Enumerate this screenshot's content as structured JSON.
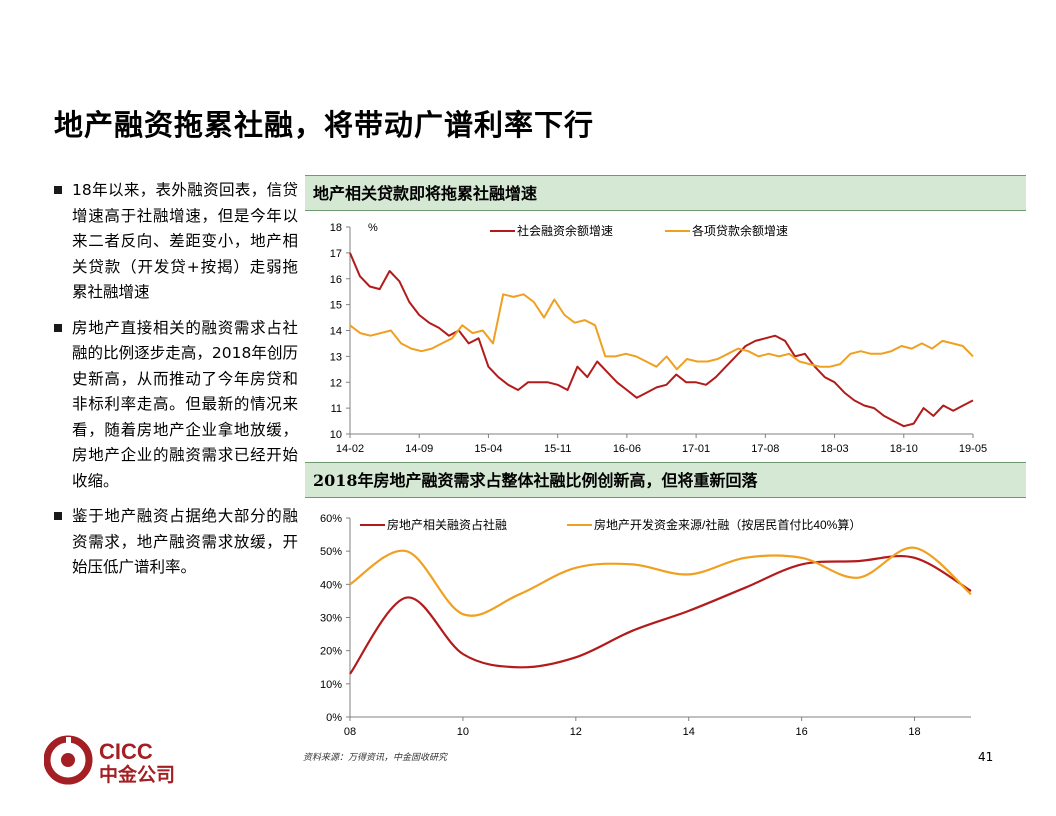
{
  "slide": {
    "title": "地产融资拖累社融，将带动广谱利率下行",
    "page_number": "41",
    "source": "资料来源：万得资讯，中金固收研究"
  },
  "bullets": [
    "18年以来，表外融资回表，信贷增速高于社融增速，但是今年以来二者反向、差距变小，地产相关贷款（开发贷+按揭）走弱拖累社融增速",
    "房地产直接相关的融资需求占社融的比例逐步走高，2018年创历史新高，从而推动了今年房贷和非标利率走高。但最新的情况来看，随着房地产企业拿地放缓，房地产企业的融资需求已经开始收缩。",
    "鉴于地产融资占据绝大部分的融资需求，地产融资需求放缓，开始压低广谱利率。"
  ],
  "logo": {
    "en": "CICC",
    "zh": "中金公司",
    "color": "#a31f24"
  },
  "colors": {
    "red": "#b31b1b",
    "orange": "#f0a020",
    "header_bg": "#d5e8d4"
  },
  "chart_data": [
    {
      "type": "line",
      "title": "地产相关贷款即将拖累社融增速",
      "ylabel": "%",
      "ylim": [
        10,
        18
      ],
      "yticks": [
        "10",
        "11",
        "12",
        "13",
        "14",
        "15",
        "16",
        "17",
        "18"
      ],
      "xticks": [
        "14-02",
        "14-09",
        "15-04",
        "15-11",
        "16-06",
        "17-01",
        "17-08",
        "18-03",
        "18-10",
        "19-05"
      ],
      "legend_position": "top",
      "series": [
        {
          "name": "社会融资余额增速",
          "color": "#b31b1b",
          "values": [
            17.0,
            16.1,
            15.7,
            15.6,
            16.3,
            15.9,
            15.1,
            14.6,
            14.3,
            14.1,
            13.8,
            14.0,
            13.5,
            13.7,
            12.6,
            12.2,
            11.9,
            11.7,
            12.0,
            12.0,
            12.0,
            11.9,
            11.7,
            12.6,
            12.2,
            12.8,
            12.4,
            12.0,
            11.7,
            11.4,
            11.6,
            11.8,
            11.9,
            12.3,
            12.0,
            12.0,
            11.9,
            12.2,
            12.6,
            13.0,
            13.4,
            13.6,
            13.7,
            13.8,
            13.6,
            13.0,
            13.1,
            12.6,
            12.2,
            12.0,
            11.6,
            11.3,
            11.1,
            11.0,
            10.7,
            10.5,
            10.3,
            10.4,
            11.0,
            10.7,
            11.1,
            10.9,
            11.1,
            11.3
          ]
        },
        {
          "name": "各项贷款余额增速",
          "color": "#f0a020",
          "values": [
            14.2,
            13.9,
            13.8,
            13.9,
            14.0,
            13.5,
            13.3,
            13.2,
            13.3,
            13.5,
            13.7,
            14.2,
            13.9,
            14.0,
            13.5,
            15.4,
            15.3,
            15.4,
            15.1,
            14.5,
            15.2,
            14.6,
            14.3,
            14.4,
            14.2,
            13.0,
            13.0,
            13.1,
            13.0,
            12.8,
            12.6,
            13.0,
            12.5,
            12.9,
            12.8,
            12.8,
            12.9,
            13.1,
            13.3,
            13.2,
            13.0,
            13.1,
            13.0,
            13.1,
            12.8,
            12.7,
            12.6,
            12.6,
            12.7,
            13.1,
            13.2,
            13.1,
            13.1,
            13.2,
            13.4,
            13.3,
            13.5,
            13.3,
            13.6,
            13.5,
            13.4,
            13.0
          ]
        }
      ]
    },
    {
      "type": "line",
      "title": "2018年房地产融资需求占整体社融比例创新高，但将重新回落",
      "ylim": [
        0,
        60
      ],
      "yticks": [
        "0%",
        "10%",
        "20%",
        "30%",
        "40%",
        "50%",
        "60%"
      ],
      "xlim": [
        2008,
        2019
      ],
      "xticks": [
        "08",
        "10",
        "12",
        "14",
        "16",
        "18"
      ],
      "legend_position": "top",
      "series": [
        {
          "name": "房地产相关融资占社融",
          "color": "#b31b1b",
          "x": [
            2008,
            2009,
            2010,
            2011,
            2012,
            2013,
            2014,
            2015,
            2016,
            2017,
            2018,
            2019
          ],
          "values": [
            13,
            36,
            19,
            15,
            18,
            26,
            32,
            39,
            46,
            47,
            48,
            38
          ]
        },
        {
          "name": "房地产开发资金来源/社融（按居民首付比40%算）",
          "color": "#f0a020",
          "x": [
            2008,
            2009,
            2010,
            2011,
            2012,
            2013,
            2014,
            2015,
            2016,
            2017,
            2018,
            2019
          ],
          "values": [
            40,
            50,
            31,
            37,
            45,
            46,
            43,
            48,
            48,
            42,
            51,
            37
          ]
        }
      ]
    }
  ]
}
